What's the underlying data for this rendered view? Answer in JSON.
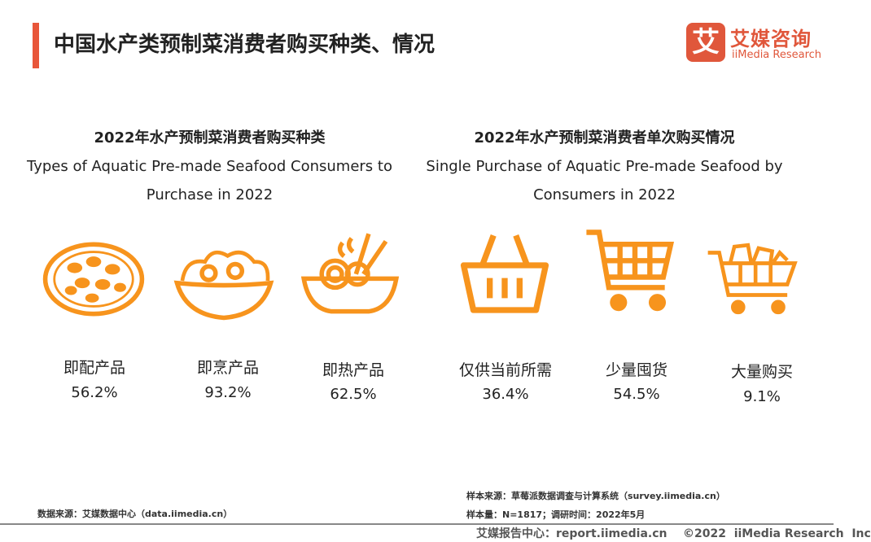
{
  "header": {
    "title": "中国水产类预制菜消费者购买种类、情况",
    "logo_mark": "艾",
    "logo_cn": "艾媒咨询",
    "logo_en": "iiMedia Research"
  },
  "left_panel": {
    "title_cn": "2022年水产预制菜消费者购买种类",
    "title_en": "Types of Aquatic Pre-made Seafood Consumers to Purchase in 2022",
    "items": [
      {
        "label": "即配产品",
        "value": "56.2%",
        "icon": "seafood-plate-icon"
      },
      {
        "label": "即烹产品",
        "value": "93.2%",
        "icon": "salad-bowl-icon"
      },
      {
        "label": "即热产品",
        "value": "62.5%",
        "icon": "noodle-bowl-icon"
      }
    ]
  },
  "right_panel": {
    "title_cn": "2022年水产预制菜消费者单次购买情况",
    "title_en": "Single Purchase of Aquatic Pre-made Seafood by Consumers in 2022",
    "items": [
      {
        "label": "仅供当前所需",
        "value": "36.4%",
        "icon": "basket-icon"
      },
      {
        "label": "少量囤货",
        "value": "54.5%",
        "icon": "cart-icon"
      },
      {
        "label": "大量购买",
        "value": "9.1%",
        "icon": "full-cart-icon"
      }
    ]
  },
  "footer": {
    "data_source": "数据来源：艾媒数据中心（data.iimedia.cn）",
    "sample_source": "样本来源：草莓派数据调查与计算系统（survey.iimedia.cn）",
    "sample_size": "样本量：N=1817；调研时间：2022年5月",
    "report": "艾媒报告中心：report.iimedia.cn    ©2022  iiMedia Research  Inc"
  },
  "colors": {
    "accent": "#e8563a",
    "icon": "#f7941d"
  }
}
